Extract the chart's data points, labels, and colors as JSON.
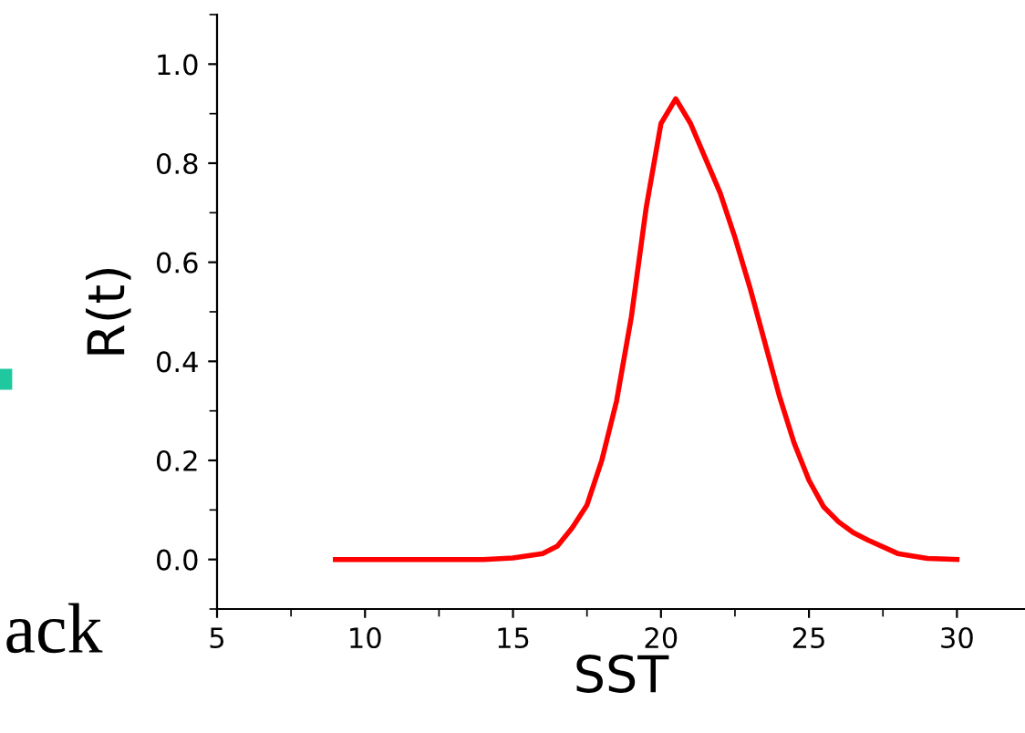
{
  "chart_data": {
    "type": "line",
    "xlabel": "SST",
    "ylabel": "R(t)",
    "annotations": [
      "ack"
    ],
    "xlim": [
      5,
      32.3
    ],
    "xticks": [
      5,
      10,
      15,
      20,
      25,
      30
    ],
    "ylim": [
      -0.1,
      1.1
    ],
    "yticks": [
      {
        "value": 0,
        "label": "0.0"
      },
      {
        "value": 0.2,
        "label": "0.2"
      },
      {
        "value": 0.4,
        "label": "0.4"
      },
      {
        "value": 0.6,
        "label": "0.6"
      },
      {
        "value": 0.8,
        "label": "0.8"
      },
      {
        "value": 1.0,
        "label": "1.0"
      }
    ],
    "grid": false,
    "marker": "none",
    "line_style": "solid",
    "series": [
      {
        "color": "#ff0000",
        "x": [
          9,
          12,
          14,
          15,
          16,
          16.5,
          17,
          17.5,
          18,
          18.5,
          19,
          19.5,
          20,
          20.5,
          21,
          21.5,
          22,
          22.5,
          23,
          23.5,
          24,
          24.5,
          25,
          25.5,
          26,
          26.5,
          27,
          28,
          29,
          30
        ],
        "values": [
          0,
          0,
          0,
          0.003,
          0.012,
          0.027,
          0.064,
          0.11,
          0.2,
          0.32,
          0.49,
          0.71,
          0.88,
          0.93,
          0.88,
          0.81,
          0.74,
          0.65,
          0.55,
          0.44,
          0.33,
          0.235,
          0.16,
          0.106,
          0.076,
          0.054,
          0.039,
          0.012,
          0.002,
          0
        ]
      }
    ]
  }
}
